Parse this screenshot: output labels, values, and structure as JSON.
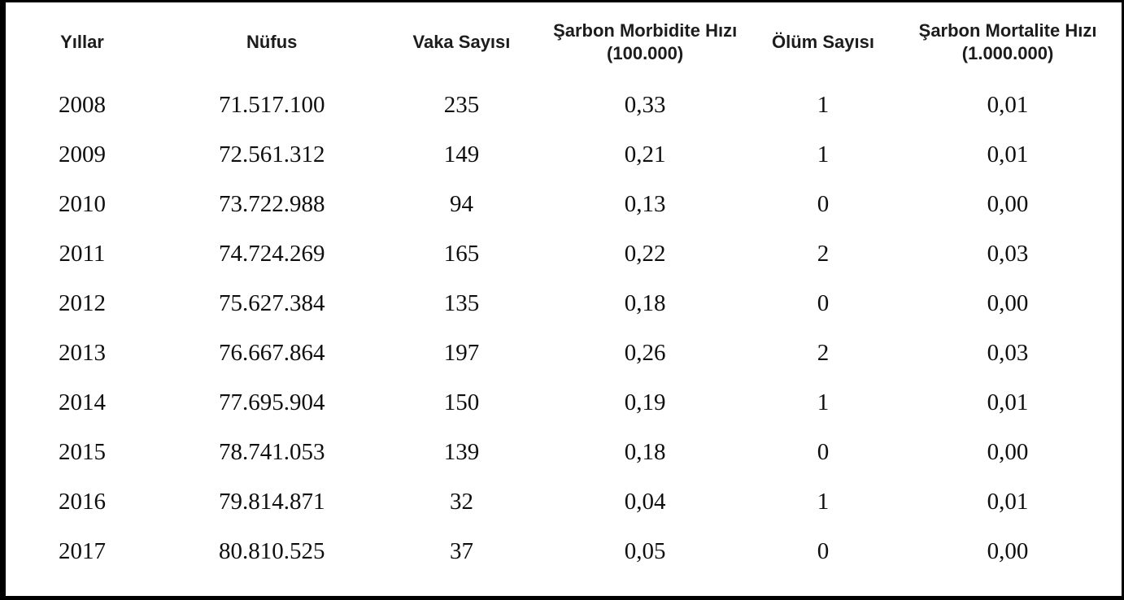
{
  "chart_data": {
    "type": "table",
    "title": "",
    "columns": [
      "Yıllar",
      "Nüfus",
      "Vaka Sayısı",
      "Şarbon Morbidite Hızı (100.000)",
      "Ölüm Sayısı",
      "Şarbon Mortalite Hızı (1.000.000)"
    ],
    "rows": [
      [
        "2008",
        "71.517.100",
        "235",
        "0,33",
        "1",
        "0,01"
      ],
      [
        "2009",
        "72.561.312",
        "149",
        "0,21",
        "1",
        "0,01"
      ],
      [
        "2010",
        "73.722.988",
        "94",
        "0,13",
        "0",
        "0,00"
      ],
      [
        "2011",
        "74.724.269",
        "165",
        "0,22",
        "2",
        "0,03"
      ],
      [
        "2012",
        "75.627.384",
        "135",
        "0,18",
        "0",
        "0,00"
      ],
      [
        "2013",
        "76.667.864",
        "197",
        "0,26",
        "2",
        "0,03"
      ],
      [
        "2014",
        "77.695.904",
        "150",
        "0,19",
        "1",
        "0,01"
      ],
      [
        "2015",
        "78.741.053",
        "139",
        "0,18",
        "0",
        "0,00"
      ],
      [
        "2016",
        "79.814.871",
        "32",
        "0,04",
        "1",
        "0,01"
      ],
      [
        "2017",
        "80.810.525",
        "37",
        "0,05",
        "0",
        "0,00"
      ]
    ],
    "layout": {
      "grid": false,
      "border_color": "#000000",
      "text_color": "#0e0e0e",
      "background_color": "#ffffff"
    }
  }
}
